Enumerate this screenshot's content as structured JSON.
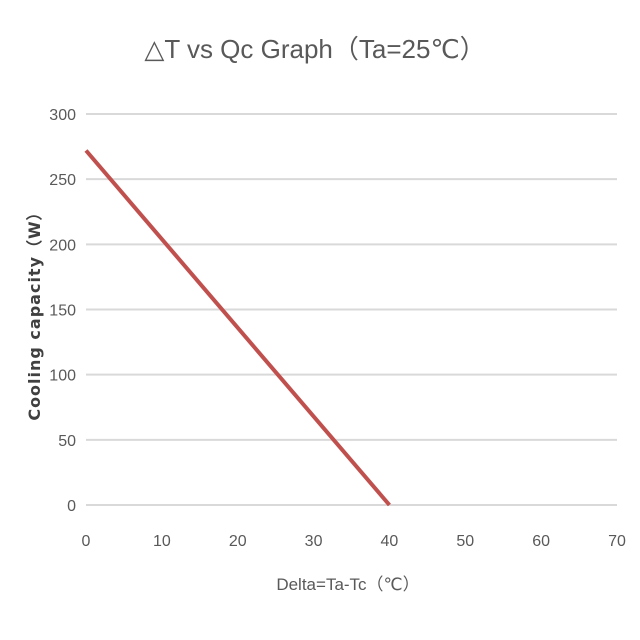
{
  "chart_data": {
    "type": "line",
    "title": "△T vs Qc Graph（Ta=25℃）",
    "xlabel": "Delta=Ta-Tc（℃）",
    "ylabel": "Cooling capacity（W）",
    "xlim": [
      0,
      70
    ],
    "ylim": [
      0,
      300
    ],
    "x_ticks": [
      "0",
      "10",
      "20",
      "30",
      "40",
      "50",
      "60",
      "70"
    ],
    "y_ticks": [
      "300",
      "250",
      "200",
      "150",
      "100",
      "50",
      "0"
    ],
    "grid": true,
    "legend": "none",
    "series": [
      {
        "name": "Qc",
        "color": "#c0504d",
        "points": [
          [
            0,
            272
          ],
          [
            40,
            0
          ]
        ]
      }
    ]
  }
}
